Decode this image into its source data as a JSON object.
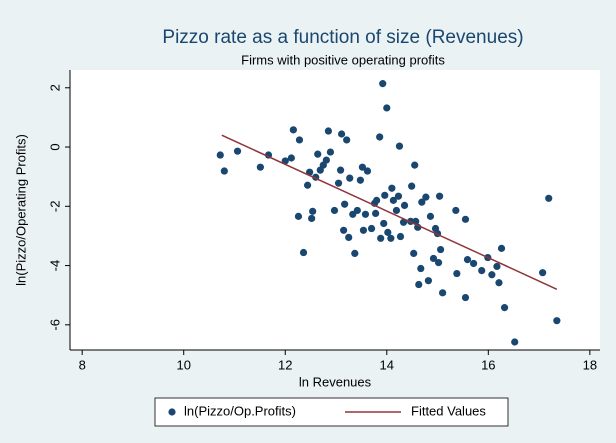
{
  "chart_data": {
    "type": "scatter",
    "title": "Pizzo rate as a function of size (Revenues)",
    "subtitle": "Firms with positive operating profits",
    "xlabel": "ln Revenues",
    "ylabel": "ln(Pizzo/Operating Profits)",
    "xlim": [
      7.76,
      18.2
    ],
    "ylim": [
      -6.85,
      2.6
    ],
    "xticks": [
      8,
      10,
      12,
      14,
      16,
      18
    ],
    "yticks": [
      2,
      0,
      -2,
      -4,
      -6
    ],
    "grid": false,
    "legend": "bottom",
    "series": [
      {
        "name": "ln(Pizzo/Op.Profits)",
        "type": "scatter",
        "color": "#1a476f",
        "x": [
          10.72,
          10.8,
          11.06,
          11.51,
          11.67,
          12.0,
          12.16,
          12.12,
          12.28,
          12.26,
          12.36,
          12.44,
          12.48,
          12.52,
          12.54,
          12.6,
          12.64,
          12.69,
          12.75,
          12.81,
          12.85,
          12.89,
          12.97,
          13.05,
          13.09,
          13.11,
          13.15,
          13.17,
          13.21,
          13.25,
          13.27,
          13.33,
          13.37,
          13.42,
          13.48,
          13.52,
          13.54,
          13.58,
          13.62,
          13.7,
          13.76,
          13.78,
          13.8,
          13.86,
          13.88,
          13.92,
          13.94,
          13.96,
          14.0,
          14.02,
          14.08,
          14.1,
          14.13,
          14.19,
          14.23,
          14.25,
          14.27,
          14.33,
          14.35,
          14.47,
          14.49,
          14.53,
          14.55,
          14.57,
          14.61,
          14.63,
          14.67,
          14.69,
          14.77,
          14.82,
          14.86,
          14.92,
          14.96,
          15.0,
          15.02,
          15.04,
          15.06,
          15.1,
          15.36,
          15.38,
          15.55,
          15.55,
          15.59,
          15.71,
          15.87,
          15.99,
          16.07,
          16.17,
          16.21,
          16.26,
          16.32,
          16.52,
          17.07,
          17.19,
          17.35
        ],
        "values": [
          -0.27,
          -0.81,
          -0.14,
          -0.68,
          -0.27,
          -0.47,
          0.58,
          -0.37,
          0.24,
          -2.34,
          -3.56,
          -1.29,
          -0.85,
          -2.41,
          -2.17,
          -1.02,
          -0.24,
          -0.78,
          -0.61,
          -0.44,
          0.54,
          -0.17,
          -2.14,
          -1.22,
          -0.78,
          0.44,
          -2.81,
          -1.93,
          0.24,
          -3.05,
          -1.05,
          -2.27,
          -3.59,
          -2.14,
          -1.12,
          -0.68,
          -2.81,
          -2.27,
          -0.81,
          -2.75,
          -1.9,
          -2.24,
          -1.8,
          0.34,
          -3.08,
          2.14,
          -2.58,
          -1.63,
          1.32,
          -2.88,
          -3.08,
          -1.39,
          -1.8,
          -2.14,
          -1.66,
          0.03,
          -3.02,
          -2.54,
          -1.97,
          -2.51,
          -1.32,
          -3.59,
          -0.61,
          -2.51,
          -2.71,
          -4.64,
          -4.1,
          -1.86,
          -1.69,
          -4.51,
          -2.34,
          -3.76,
          -2.75,
          -2.92,
          -3.9,
          -1.66,
          -3.46,
          -4.92,
          -2.14,
          -4.27,
          -2.44,
          -5.08,
          -3.8,
          -3.93,
          -4.17,
          -3.73,
          -4.31,
          -4.03,
          -4.58,
          -3.42,
          -5.42,
          -6.58,
          -4.24,
          -1.73,
          -5.86
        ]
      },
      {
        "name": "Fitted Values",
        "type": "line",
        "color": "#90353b",
        "x": [
          10.75,
          17.35
        ],
        "values": [
          0.4,
          -4.8
        ]
      }
    ]
  }
}
